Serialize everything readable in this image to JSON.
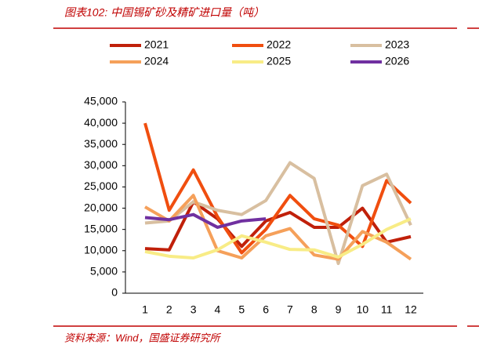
{
  "chart_data": {
    "type": "line",
    "title": "图表102:  中国锡矿砂及精矿进口量（吨）",
    "source": "资料来源：Wind，国盛证券研究所",
    "categories": [
      "1",
      "2",
      "3",
      "4",
      "5",
      "6",
      "7",
      "8",
      "9",
      "10",
      "11",
      "12"
    ],
    "series": [
      {
        "name": "2021",
        "color": "#c0200a",
        "values": [
          10500,
          10200,
          21500,
          17500,
          11000,
          17000,
          19000,
          15500,
          15500,
          20000,
          12000,
          13300
        ]
      },
      {
        "name": "2022",
        "color": "#f04e0f",
        "values": [
          40000,
          19500,
          29000,
          18000,
          9500,
          15000,
          23000,
          17500,
          16000,
          11000,
          26500,
          21200
        ]
      },
      {
        "name": "2023",
        "color": "#d8bfa0",
        "values": [
          16500,
          17000,
          21500,
          19500,
          18500,
          21800,
          30700,
          27000,
          7000,
          25300,
          28000,
          16000
        ]
      },
      {
        "name": "2024",
        "color": "#f5a05a",
        "values": [
          20300,
          17000,
          23000,
          10000,
          8300,
          13500,
          15200,
          9000,
          8000,
          14500,
          12000,
          8000
        ]
      },
      {
        "name": "2025",
        "color": "#f8ec86",
        "values": [
          9800,
          8700,
          8300,
          10200,
          13500,
          12000,
          10300,
          10200,
          8500,
          11500,
          15000,
          17500
        ]
      },
      {
        "name": "2026",
        "color": "#7030a0",
        "values": [
          17800,
          17300,
          18500,
          15500,
          17000,
          17500,
          null,
          null,
          null,
          null,
          null,
          null
        ]
      }
    ],
    "ylim": [
      0,
      45000
    ],
    "yticks": [
      0,
      {
        "value": 5000,
        "label": "5,000"
      },
      {
        "value": 10000,
        "label": "10,000"
      },
      {
        "value": 15000,
        "label": "15,000"
      },
      {
        "value": 20000,
        "label": "20,000"
      },
      {
        "value": 25000,
        "label": "25,000"
      },
      {
        "value": 30000,
        "label": "30,000"
      },
      {
        "value": 35000,
        "label": "35,000"
      },
      {
        "value": 40000,
        "label": "40,000"
      },
      {
        "value": 45000,
        "label": "45,000"
      }
    ]
  }
}
